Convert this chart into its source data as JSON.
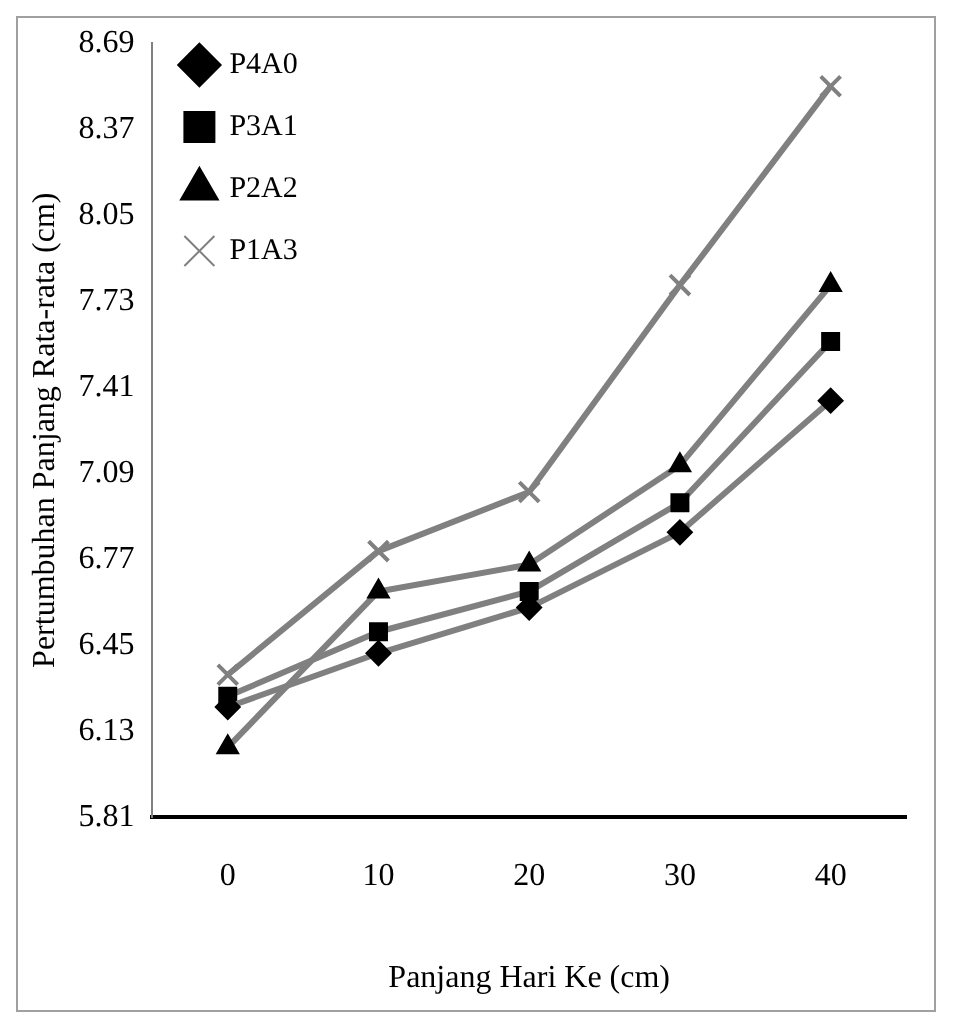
{
  "chart_data": {
    "type": "line",
    "xlabel": "Panjang Hari Ke (cm)",
    "ylabel": "Pertumbuhan Panjang Rata-rata (cm)",
    "categories": [
      "0",
      "10",
      "20",
      "30",
      "40"
    ],
    "ylim": [
      5.81,
      8.69
    ],
    "yticks": [
      5.81,
      6.13,
      6.45,
      6.77,
      7.09,
      7.41,
      7.73,
      8.05,
      8.37,
      8.69
    ],
    "grid": false,
    "legend": "top left",
    "line_style": "solid",
    "series": [
      {
        "name": "P4A0",
        "color": "#808080",
        "marker": "diamond",
        "values": [
          6.22,
          6.42,
          6.59,
          6.87,
          7.36
        ]
      },
      {
        "name": "P3A1",
        "color": "#808080",
        "marker": "square",
        "values": [
          6.26,
          6.5,
          6.65,
          6.98,
          7.58
        ]
      },
      {
        "name": "P2A2",
        "color": "#808080",
        "marker": "triangle",
        "values": [
          6.07,
          6.65,
          6.75,
          7.12,
          7.79
        ]
      },
      {
        "name": "P1A3",
        "color": "#808080",
        "marker": "cross",
        "values": [
          6.34,
          6.8,
          7.02,
          7.79,
          8.53
        ]
      }
    ]
  }
}
